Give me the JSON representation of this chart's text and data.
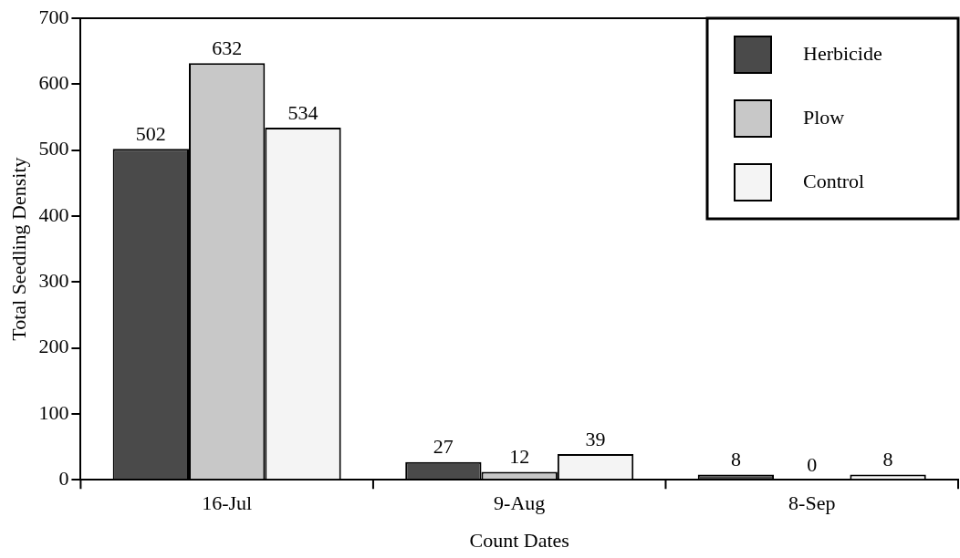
{
  "chart_data": {
    "type": "bar",
    "xlabel": "Count Dates",
    "ylabel": "Total Seedling Density",
    "categories": [
      "16-Jul",
      "9-Aug",
      "8-Sep"
    ],
    "series": [
      {
        "name": "Herbicide",
        "color": "#4a4a4a",
        "values": [
          502,
          27,
          8
        ]
      },
      {
        "name": "Plow",
        "color": "#c8c8c8",
        "values": [
          632,
          12,
          0
        ]
      },
      {
        "name": "Control",
        "color": "#f4f4f4",
        "values": [
          534,
          39,
          8
        ]
      }
    ],
    "ylim": [
      0,
      700
    ],
    "yticks": [
      0,
      100,
      200,
      300,
      400,
      500,
      600,
      700
    ],
    "grid": false,
    "legend": "top right",
    "data_labels": true
  }
}
